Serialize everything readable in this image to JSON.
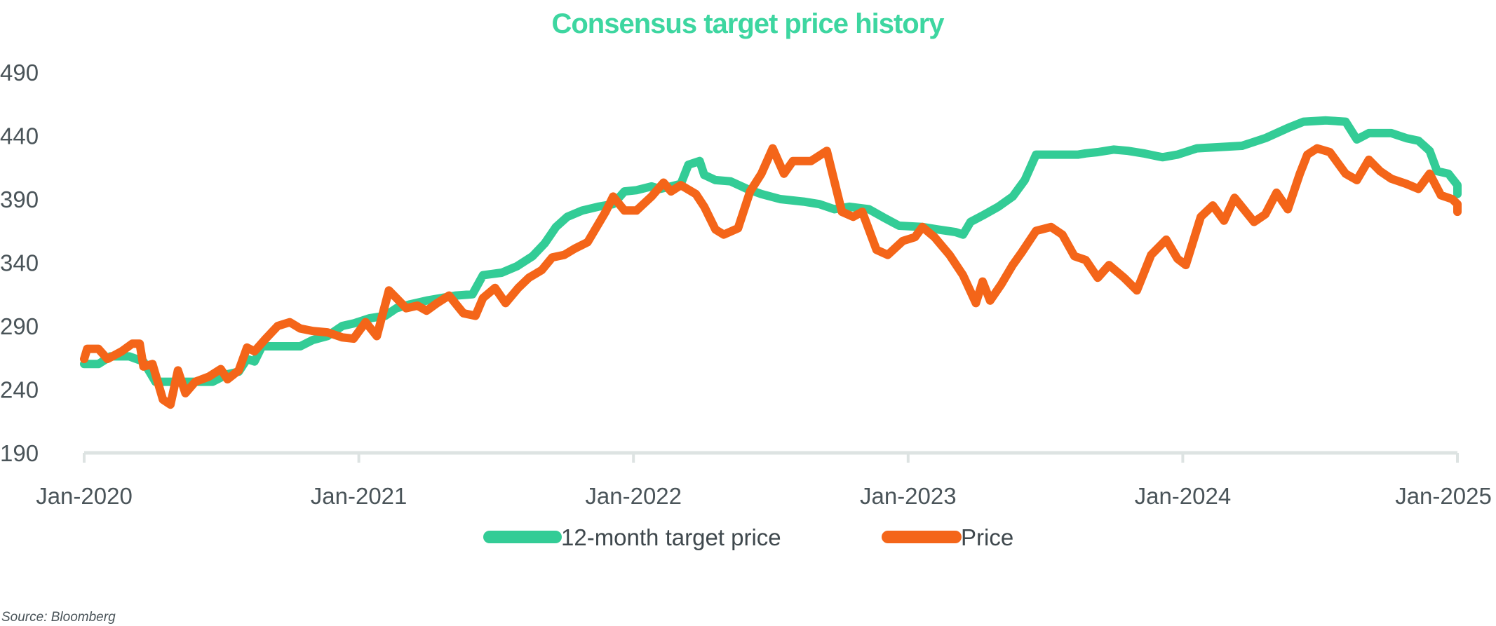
{
  "chart_data": {
    "type": "line",
    "title": "Consensus target price history",
    "xlabel": "",
    "ylabel": "",
    "ylim": [
      190,
      490
    ],
    "yticks": [
      "190",
      "240",
      "290",
      "340",
      "390",
      "440",
      "490"
    ],
    "xlim": [
      "2020-01-01",
      "2025-01-01"
    ],
    "xticks": [
      "Jan-2020",
      "Jan-2021",
      "Jan-2022",
      "Jan-2023",
      "Jan-2024",
      "Jan-2025"
    ],
    "grid": false,
    "legend_position": "bottom",
    "source": "Source: Bloomberg",
    "series": [
      {
        "name": "12-month target price",
        "color": "#33cc96",
        "points": [
          [
            "2020-01-01",
            260
          ],
          [
            "2020-01-20",
            260
          ],
          [
            "2020-02-05",
            266
          ],
          [
            "2020-03-01",
            266
          ],
          [
            "2020-03-20",
            262
          ],
          [
            "2020-04-05",
            246
          ],
          [
            "2020-05-15",
            246
          ],
          [
            "2020-06-20",
            246
          ],
          [
            "2020-07-10",
            252
          ],
          [
            "2020-07-25",
            254
          ],
          [
            "2020-08-05",
            264
          ],
          [
            "2020-08-15",
            262
          ],
          [
            "2020-08-25",
            274
          ],
          [
            "2020-10-15",
            274
          ],
          [
            "2020-11-01",
            279
          ],
          [
            "2020-11-20",
            282
          ],
          [
            "2020-12-10",
            290
          ],
          [
            "2020-12-25",
            292
          ],
          [
            "2021-01-15",
            296
          ],
          [
            "2021-02-05",
            298
          ],
          [
            "2021-02-20",
            304
          ],
          [
            "2021-03-10",
            307
          ],
          [
            "2021-04-01",
            310
          ],
          [
            "2021-05-10",
            314
          ],
          [
            "2021-06-01",
            315
          ],
          [
            "2021-06-15",
            330
          ],
          [
            "2021-07-10",
            332
          ],
          [
            "2021-07-30",
            337
          ],
          [
            "2021-08-20",
            345
          ],
          [
            "2021-09-05",
            355
          ],
          [
            "2021-09-20",
            368
          ],
          [
            "2021-10-05",
            376
          ],
          [
            "2021-10-25",
            381
          ],
          [
            "2021-11-15",
            384
          ],
          [
            "2021-12-05",
            386
          ],
          [
            "2021-12-20",
            396
          ],
          [
            "2022-01-05",
            397
          ],
          [
            "2022-01-25",
            400
          ],
          [
            "2022-02-05",
            398
          ],
          [
            "2022-02-20",
            400
          ],
          [
            "2022-03-05",
            402
          ],
          [
            "2022-03-15",
            417
          ],
          [
            "2022-03-30",
            420
          ],
          [
            "2022-04-05",
            409
          ],
          [
            "2022-04-20",
            405
          ],
          [
            "2022-05-10",
            404
          ],
          [
            "2022-06-01",
            398
          ],
          [
            "2022-06-20",
            394
          ],
          [
            "2022-07-15",
            390
          ],
          [
            "2022-08-15",
            388
          ],
          [
            "2022-09-05",
            386
          ],
          [
            "2022-09-25",
            382
          ],
          [
            "2022-10-15",
            384
          ],
          [
            "2022-11-10",
            382
          ],
          [
            "2022-12-01",
            375
          ],
          [
            "2022-12-20",
            369
          ],
          [
            "2023-01-20",
            368
          ],
          [
            "2023-02-10",
            366
          ],
          [
            "2023-03-05",
            364
          ],
          [
            "2023-03-15",
            362
          ],
          [
            "2023-03-25",
            372
          ],
          [
            "2023-04-10",
            377
          ],
          [
            "2023-05-01",
            384
          ],
          [
            "2023-05-20",
            392
          ],
          [
            "2023-06-05",
            405
          ],
          [
            "2023-06-20",
            425
          ],
          [
            "2023-07-20",
            425
          ],
          [
            "2023-08-15",
            425
          ],
          [
            "2023-08-25",
            426
          ],
          [
            "2023-09-10",
            427
          ],
          [
            "2023-10-01",
            429
          ],
          [
            "2023-10-20",
            428
          ],
          [
            "2023-11-10",
            426
          ],
          [
            "2023-12-05",
            423
          ],
          [
            "2023-12-25",
            425
          ],
          [
            "2024-01-20",
            430
          ],
          [
            "2024-02-20",
            431
          ],
          [
            "2024-03-20",
            432
          ],
          [
            "2024-04-20",
            438
          ],
          [
            "2024-05-20",
            446
          ],
          [
            "2024-06-10",
            451
          ],
          [
            "2024-07-10",
            452
          ],
          [
            "2024-08-05",
            451
          ],
          [
            "2024-08-20",
            437
          ],
          [
            "2024-09-05",
            442
          ],
          [
            "2024-10-05",
            442
          ],
          [
            "2024-10-25",
            438
          ],
          [
            "2024-11-10",
            436
          ],
          [
            "2024-11-25",
            428
          ],
          [
            "2024-12-05",
            412
          ],
          [
            "2024-12-20",
            410
          ],
          [
            "2025-01-15",
            401
          ],
          [
            "2025-02-01",
            395
          ],
          [
            "2025-03-01",
            394
          ]
        ]
      },
      {
        "name": "Price",
        "color": "#f46519",
        "points": [
          [
            "2020-01-01",
            264
          ],
          [
            "2020-01-05",
            272
          ],
          [
            "2020-01-20",
            272
          ],
          [
            "2020-02-01",
            264
          ],
          [
            "2020-02-20",
            270
          ],
          [
            "2020-03-05",
            276
          ],
          [
            "2020-03-15",
            276
          ],
          [
            "2020-03-20",
            258
          ],
          [
            "2020-04-01",
            260
          ],
          [
            "2020-04-15",
            232
          ],
          [
            "2020-04-25",
            228
          ],
          [
            "2020-05-05",
            255
          ],
          [
            "2020-05-15",
            237
          ],
          [
            "2020-05-28",
            246
          ],
          [
            "2020-06-15",
            250
          ],
          [
            "2020-07-01",
            256
          ],
          [
            "2020-07-10",
            248
          ],
          [
            "2020-07-25",
            255
          ],
          [
            "2020-08-05",
            273
          ],
          [
            "2020-08-15",
            270
          ],
          [
            "2020-08-30",
            280
          ],
          [
            "2020-09-15",
            290
          ],
          [
            "2020-10-01",
            293
          ],
          [
            "2020-10-15",
            288
          ],
          [
            "2020-11-01",
            286
          ],
          [
            "2020-11-20",
            285
          ],
          [
            "2020-12-10",
            281
          ],
          [
            "2020-12-25",
            280
          ],
          [
            "2021-01-10",
            293
          ],
          [
            "2021-01-25",
            282
          ],
          [
            "2021-02-10",
            318
          ],
          [
            "2021-02-20",
            312
          ],
          [
            "2021-03-05",
            304
          ],
          [
            "2021-03-20",
            306
          ],
          [
            "2021-04-01",
            302
          ],
          [
            "2021-04-15",
            308
          ],
          [
            "2021-05-01",
            314
          ],
          [
            "2021-05-20",
            300
          ],
          [
            "2021-06-05",
            298
          ],
          [
            "2021-06-15",
            312
          ],
          [
            "2021-07-01",
            320
          ],
          [
            "2021-07-15",
            308
          ],
          [
            "2021-08-01",
            320
          ],
          [
            "2021-08-15",
            328
          ],
          [
            "2021-09-01",
            334
          ],
          [
            "2021-09-15",
            344
          ],
          [
            "2021-10-01",
            346
          ],
          [
            "2021-10-15",
            351
          ],
          [
            "2021-11-01",
            356
          ],
          [
            "2021-11-15",
            370
          ],
          [
            "2021-11-25",
            380
          ],
          [
            "2021-12-05",
            392
          ],
          [
            "2021-12-20",
            381
          ],
          [
            "2022-01-05",
            381
          ],
          [
            "2022-01-25",
            392
          ],
          [
            "2022-02-10",
            403
          ],
          [
            "2022-02-20",
            396
          ],
          [
            "2022-03-05",
            401
          ],
          [
            "2022-03-25",
            394
          ],
          [
            "2022-04-05",
            384
          ],
          [
            "2022-04-20",
            366
          ],
          [
            "2022-05-01",
            362
          ],
          [
            "2022-05-20",
            367
          ],
          [
            "2022-06-05",
            396
          ],
          [
            "2022-06-20",
            410
          ],
          [
            "2022-07-05",
            430
          ],
          [
            "2022-07-20",
            410
          ],
          [
            "2022-08-01",
            420
          ],
          [
            "2022-08-25",
            420
          ],
          [
            "2022-09-15",
            428
          ],
          [
            "2022-10-05",
            380
          ],
          [
            "2022-10-20",
            376
          ],
          [
            "2022-11-01",
            380
          ],
          [
            "2022-11-20",
            350
          ],
          [
            "2022-12-05",
            346
          ],
          [
            "2022-12-25",
            357
          ],
          [
            "2023-01-10",
            360
          ],
          [
            "2023-01-20",
            368
          ],
          [
            "2023-02-05",
            360
          ],
          [
            "2023-02-25",
            346
          ],
          [
            "2023-03-15",
            330
          ],
          [
            "2023-04-01",
            308
          ],
          [
            "2023-04-10",
            325
          ],
          [
            "2023-04-20",
            310
          ],
          [
            "2023-05-05",
            323
          ],
          [
            "2023-05-20",
            338
          ],
          [
            "2023-06-01",
            348
          ],
          [
            "2023-06-20",
            365
          ],
          [
            "2023-07-10",
            368
          ],
          [
            "2023-07-25",
            362
          ],
          [
            "2023-08-10",
            345
          ],
          [
            "2023-08-25",
            342
          ],
          [
            "2023-09-10",
            328
          ],
          [
            "2023-09-25",
            338
          ],
          [
            "2023-10-15",
            328
          ],
          [
            "2023-11-01",
            318
          ],
          [
            "2023-11-20",
            346
          ],
          [
            "2023-12-10",
            358
          ],
          [
            "2023-12-25",
            343
          ],
          [
            "2024-01-05",
            338
          ],
          [
            "2024-01-25",
            376
          ],
          [
            "2024-02-10",
            385
          ],
          [
            "2024-02-25",
            373
          ],
          [
            "2024-03-10",
            391
          ],
          [
            "2024-03-25",
            380
          ],
          [
            "2024-04-05",
            372
          ],
          [
            "2024-04-20",
            378
          ],
          [
            "2024-05-05",
            395
          ],
          [
            "2024-05-20",
            382
          ],
          [
            "2024-06-05",
            410
          ],
          [
            "2024-06-15",
            425
          ],
          [
            "2024-06-28",
            430
          ],
          [
            "2024-07-15",
            427
          ],
          [
            "2024-08-05",
            410
          ],
          [
            "2024-08-20",
            405
          ],
          [
            "2024-09-05",
            421
          ],
          [
            "2024-09-20",
            412
          ],
          [
            "2024-10-05",
            406
          ],
          [
            "2024-10-25",
            402
          ],
          [
            "2024-11-10",
            398
          ],
          [
            "2024-11-25",
            410
          ],
          [
            "2024-12-10",
            393
          ],
          [
            "2024-12-25",
            390
          ],
          [
            "2025-01-05",
            386
          ],
          [
            "2025-01-20",
            380
          ]
        ]
      }
    ]
  }
}
